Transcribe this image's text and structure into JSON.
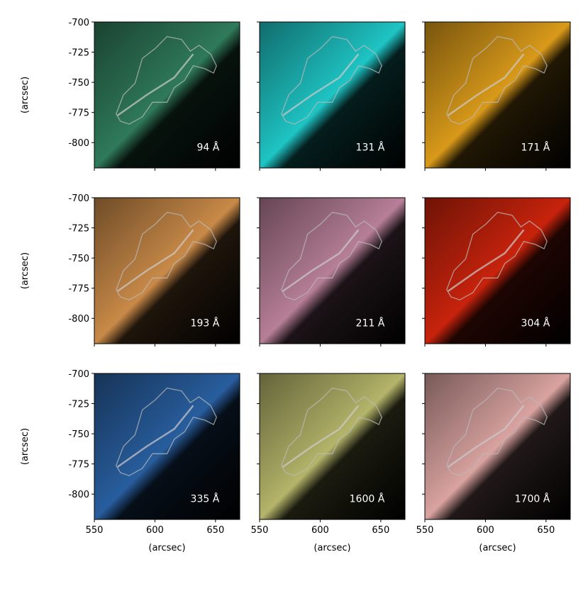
{
  "chart_data": [
    {
      "type": "image",
      "label": "94 Å",
      "color": "#2f7a5a",
      "xlim": [
        550,
        670
      ],
      "ylim": [
        -821,
        -700
      ],
      "xticks": [
        550,
        600,
        650
      ],
      "yticks": [
        -700,
        -725,
        -750,
        -775,
        -800
      ],
      "ylabel": "(arcsec)"
    },
    {
      "type": "image",
      "label": "131 Å",
      "color": "#1fc4c4",
      "xlim": [
        550,
        670
      ],
      "ylim": [
        -821,
        -700
      ],
      "xticks": [
        550,
        600,
        650
      ],
      "yticks": [
        -700,
        -725,
        -750,
        -775,
        -800
      ]
    },
    {
      "type": "image",
      "label": "171 Å",
      "color": "#d99a1a",
      "xlim": [
        550,
        670
      ],
      "ylim": [
        -821,
        -700
      ],
      "xticks": [
        550,
        600,
        650
      ],
      "yticks": [
        -700,
        -725,
        -750,
        -775,
        -800
      ]
    },
    {
      "type": "image",
      "label": "193 Å",
      "color": "#c98a48",
      "xlim": [
        550,
        670
      ],
      "ylim": [
        -821,
        -700
      ],
      "xticks": [
        550,
        600,
        650
      ],
      "yticks": [
        -700,
        -725,
        -750,
        -775,
        -800
      ],
      "ylabel": "(arcsec)"
    },
    {
      "type": "image",
      "label": "211 Å",
      "color": "#b77f98",
      "xlim": [
        550,
        670
      ],
      "ylim": [
        -821,
        -700
      ],
      "xticks": [
        550,
        600,
        650
      ],
      "yticks": [
        -700,
        -725,
        -750,
        -775,
        -800
      ]
    },
    {
      "type": "image",
      "label": "304 Å",
      "color": "#c8230c",
      "xlim": [
        550,
        670
      ],
      "ylim": [
        -821,
        -700
      ],
      "xticks": [
        550,
        600,
        650
      ],
      "yticks": [
        -700,
        -725,
        -750,
        -775,
        -800
      ]
    },
    {
      "type": "image",
      "label": "335 Å",
      "color": "#285e9e",
      "xlim": [
        550,
        670
      ],
      "ylim": [
        -821,
        -700
      ],
      "xticks": [
        550,
        600,
        650
      ],
      "yticks": [
        -700,
        -725,
        -750,
        -775,
        -800
      ],
      "ylabel": "(arcsec)",
      "xlabel": "(arcsec)"
    },
    {
      "type": "image",
      "label": "1600 Å",
      "color": "#b4b46a",
      "xlim": [
        550,
        670
      ],
      "ylim": [
        -821,
        -700
      ],
      "xticks": [
        550,
        600,
        650
      ],
      "yticks": [
        -700,
        -725,
        -750,
        -775,
        -800
      ],
      "xlabel": "(arcsec)"
    },
    {
      "type": "image",
      "label": "1700 Å",
      "color": "#d9a3a0",
      "xlim": [
        550,
        670
      ],
      "ylim": [
        -821,
        -700
      ],
      "xticks": [
        550,
        600,
        650
      ],
      "yticks": [
        -700,
        -725,
        -750,
        -775,
        -800
      ],
      "xlabel": "(arcsec)"
    }
  ]
}
